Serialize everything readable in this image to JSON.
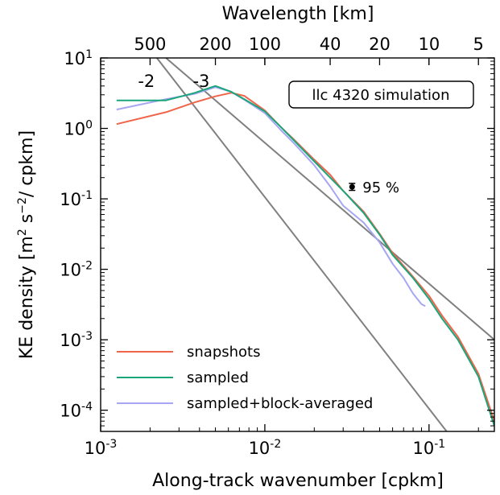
{
  "chart_data": {
    "type": "line",
    "xlabel": "Along-track wavenumber [cpkm]",
    "ylabel": "KE density [m² s⁻²/ cpkm]",
    "top_xlabel": "Wavelength [km]",
    "xscale": "log",
    "yscale": "log",
    "xlim": [
      0.001,
      0.25
    ],
    "ylim": [
      5e-05,
      10
    ],
    "grid": false,
    "legend_position": "bottom-left",
    "x_ticks": [
      {
        "value": 0.001,
        "base": "10",
        "exp": "-3"
      },
      {
        "value": 0.01,
        "base": "10",
        "exp": "-2"
      },
      {
        "value": 0.1,
        "base": "10",
        "exp": "-1"
      }
    ],
    "y_ticks": [
      {
        "value": 10,
        "base": "10",
        "exp": "1"
      },
      {
        "value": 1,
        "base": "10",
        "exp": "0"
      },
      {
        "value": 0.1,
        "base": "10",
        "exp": "-1"
      },
      {
        "value": 0.01,
        "base": "10",
        "exp": "-2"
      },
      {
        "value": 0.001,
        "base": "10",
        "exp": "-3"
      },
      {
        "value": 0.0001,
        "base": "10",
        "exp": "-4"
      }
    ],
    "top_ticks": [
      {
        "wavelength": 500,
        "label": "500"
      },
      {
        "wavelength": 200,
        "label": "200"
      },
      {
        "wavelength": 100,
        "label": "100"
      },
      {
        "wavelength": 40,
        "label": "40"
      },
      {
        "wavelength": 20,
        "label": "20"
      },
      {
        "wavelength": 10,
        "label": "10"
      },
      {
        "wavelength": 5,
        "label": "5"
      }
    ],
    "box_label": "llc 4320 simulation",
    "confidence": {
      "x": 0.034,
      "y": 0.148,
      "ylow": 0.132,
      "yhigh": 0.166,
      "label": "95 %"
    },
    "slope_lines": [
      {
        "label": "-2",
        "slope": -2,
        "from": [
          0.0025,
          10
        ],
        "to": [
          0.25,
          0.001
        ],
        "label_at": [
          0.0019,
          4.8
        ]
      },
      {
        "label": "-3",
        "slope": -3,
        "from": [
          0.0022,
          10
        ],
        "to": [
          0.25,
          6.7e-06
        ],
        "label_at": [
          0.0041,
          4.8
        ]
      }
    ],
    "series": [
      {
        "name": "snapshots",
        "color": "#f0644a",
        "x": [
          0.00125,
          0.0025,
          0.00375,
          0.005,
          0.00625,
          0.0075,
          0.01,
          0.0125,
          0.015,
          0.02,
          0.025,
          0.03,
          0.04,
          0.05,
          0.06,
          0.08,
          0.1,
          0.12,
          0.15,
          0.2,
          0.25
        ],
        "y": [
          1.15,
          1.7,
          2.35,
          2.85,
          3.2,
          2.9,
          1.8,
          1.05,
          0.7,
          0.36,
          0.22,
          0.13,
          0.066,
          0.032,
          0.017,
          0.0078,
          0.0042,
          0.0022,
          0.0011,
          0.00033,
          7e-05
        ]
      },
      {
        "name": "sampled",
        "color": "#1aa67a",
        "x": [
          0.00125,
          0.0025,
          0.00375,
          0.005,
          0.00625,
          0.0075,
          0.01,
          0.0125,
          0.015,
          0.02,
          0.025,
          0.03,
          0.04,
          0.05,
          0.06,
          0.08,
          0.1,
          0.12,
          0.15,
          0.2,
          0.25
        ],
        "y": [
          2.5,
          2.5,
          3.2,
          4.0,
          3.3,
          2.6,
          1.75,
          1.05,
          0.68,
          0.34,
          0.2,
          0.13,
          0.063,
          0.031,
          0.016,
          0.0075,
          0.0038,
          0.002,
          0.001,
          0.0003,
          6e-05
        ]
      },
      {
        "name": "sampled+block-averaged",
        "color": "#a6a6f2",
        "x": [
          0.00125,
          0.0025,
          0.00375,
          0.005,
          0.00625,
          0.0075,
          0.01,
          0.0125,
          0.015,
          0.02,
          0.025,
          0.03,
          0.04,
          0.05,
          0.06,
          0.07,
          0.08,
          0.09,
          0.095
        ],
        "y": [
          1.85,
          2.6,
          3.1,
          3.85,
          3.3,
          2.55,
          1.65,
          0.95,
          0.62,
          0.3,
          0.15,
          0.08,
          0.046,
          0.024,
          0.012,
          0.0075,
          0.0045,
          0.0032,
          0.003
        ]
      }
    ]
  }
}
